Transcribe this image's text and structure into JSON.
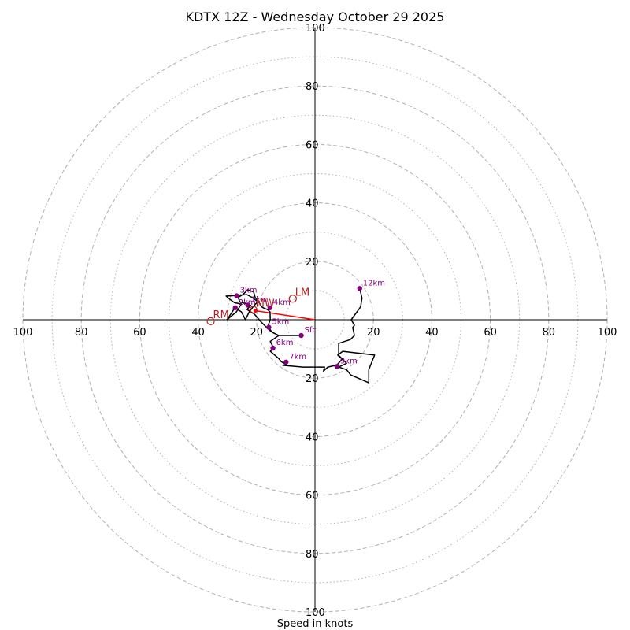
{
  "chart_data": {
    "type": "scatter",
    "title": "KDTX 12Z - Wednesday October 29 2025",
    "xlabel": "Speed in knots",
    "ylabel": "",
    "xlim": [
      -100,
      100
    ],
    "ylim": [
      -100,
      100
    ],
    "rings_major": [
      20,
      40,
      60,
      80,
      100
    ],
    "rings_minor": [
      10,
      30,
      50,
      70,
      90
    ],
    "x_ticks": [
      {
        "value": -100,
        "label": "100"
      },
      {
        "value": -80,
        "label": "80"
      },
      {
        "value": -60,
        "label": "60"
      },
      {
        "value": -40,
        "label": "40"
      },
      {
        "value": -20,
        "label": "20"
      },
      {
        "value": 20,
        "label": "20"
      },
      {
        "value": 40,
        "label": "40"
      },
      {
        "value": 60,
        "label": "60"
      },
      {
        "value": 80,
        "label": "80"
      },
      {
        "value": 100,
        "label": "100"
      }
    ],
    "y_ticks": [
      {
        "value": 100,
        "label": "100"
      },
      {
        "value": 80,
        "label": "80"
      },
      {
        "value": 60,
        "label": "60"
      },
      {
        "value": 40,
        "label": "40"
      },
      {
        "value": 20,
        "label": "20"
      },
      {
        "value": -20,
        "label": "20"
      },
      {
        "value": -40,
        "label": "40"
      },
      {
        "value": -60,
        "label": "60"
      },
      {
        "value": -80,
        "label": "80"
      },
      {
        "value": -100,
        "label": "100"
      }
    ],
    "trace": [
      [
        -4.7,
        -5.4
      ],
      [
        -8.5,
        -5.4
      ],
      [
        -12.4,
        -5.4
      ],
      [
        -15,
        -4.1
      ],
      [
        -16.5,
        -2.7
      ],
      [
        -18.5,
        -0.7
      ],
      [
        -20.7,
        1.9
      ],
      [
        -23.3,
        3.5
      ],
      [
        -22,
        4.9
      ],
      [
        -25.7,
        6.1
      ],
      [
        -26.3,
        7.6
      ],
      [
        -24.6,
        8.7
      ],
      [
        -23,
        10.3
      ],
      [
        -21,
        9.5
      ],
      [
        -20.4,
        7.4
      ],
      [
        -19.3,
        6.4
      ],
      [
        -20.8,
        4.9
      ],
      [
        -22.5,
        2.7
      ],
      [
        -23.8,
        0
      ],
      [
        -25.2,
        2.7
      ],
      [
        -27.4,
        4.1
      ],
      [
        -30.1,
        0
      ],
      [
        -26.9,
        2.7
      ],
      [
        -25.2,
        5.4
      ],
      [
        -27.5,
        5.8
      ],
      [
        -29.2,
        7
      ],
      [
        -30.4,
        8.1
      ],
      [
        -28.5,
        8.2
      ],
      [
        -26.4,
        8.4
      ],
      [
        -23.3,
        8.6
      ],
      [
        -21.7,
        7.7
      ],
      [
        -19.2,
        5.9
      ],
      [
        -18.2,
        4.4
      ],
      [
        -17.4,
        3.9
      ],
      [
        -16.3,
        3.5
      ],
      [
        -15.4,
        2.7
      ],
      [
        -15.3,
        0
      ],
      [
        -16,
        -1.9
      ],
      [
        -15.8,
        -2.7
      ],
      [
        -14.7,
        -4.3
      ],
      [
        -12.4,
        -5.4
      ],
      [
        -15.3,
        -7.4
      ],
      [
        -14.2,
        -9.6
      ],
      [
        -15.3,
        -10.8
      ],
      [
        -12.4,
        -13.3
      ],
      [
        -11.6,
        -14.3
      ],
      [
        -9.9,
        -15.3
      ],
      [
        -11,
        -15.6
      ],
      [
        -4.1,
        -16.2
      ],
      [
        3.3,
        -16.2
      ],
      [
        2.9,
        -17.6
      ],
      [
        4.4,
        -16.2
      ],
      [
        7.5,
        -15.5
      ],
      [
        9.3,
        -13.5
      ],
      [
        7.8,
        -12.1
      ],
      [
        9.5,
        -10.8
      ],
      [
        20.4,
        -12.1
      ],
      [
        18.4,
        -17.1
      ],
      [
        18.4,
        -21.6
      ],
      [
        12.2,
        -18.9
      ],
      [
        10.8,
        -17.1
      ],
      [
        8.1,
        -16.2
      ],
      [
        10.8,
        -14.9
      ],
      [
        8.1,
        -12.2
      ],
      [
        8.1,
        -8.1
      ],
      [
        12.1,
        -6.8
      ],
      [
        13.5,
        -5.4
      ],
      [
        12.9,
        -2.7
      ],
      [
        13.5,
        -1.9
      ],
      [
        12.4,
        0
      ],
      [
        15.6,
        4.4
      ],
      [
        16.1,
        7.4
      ],
      [
        15.3,
        10.8
      ]
    ],
    "height_markers": [
      {
        "label": "Sfc",
        "u": -4.7,
        "v": -5.4
      },
      {
        "label": "1km",
        "u": -23,
        "v": 5
      },
      {
        "label": "2km",
        "u": -27.3,
        "v": 4.1
      },
      {
        "label": "3km",
        "u": -26.8,
        "v": 8.2
      },
      {
        "label": "4km",
        "u": -15.4,
        "v": 4.1
      },
      {
        "label": "5km",
        "u": -15.8,
        "v": -2.6
      },
      {
        "label": "6km",
        "u": -14.4,
        "v": -9.7
      },
      {
        "label": "7km",
        "u": -9.9,
        "v": -14.5
      },
      {
        "label": "9km",
        "u": 7.5,
        "v": -16
      },
      {
        "label": "12km",
        "u": 15.3,
        "v": 10.7
      }
    ],
    "storm_motion": {
      "mean": {
        "label": "MW",
        "u": -21.1,
        "v": 3.4
      },
      "right": {
        "label": "RM",
        "u": -35.7,
        "v": -0.5
      },
      "left": {
        "label": "LM",
        "u": -7.6,
        "v": 7.2
      },
      "shear_vector_end": {
        "u": -20.4,
        "v": 3.1
      }
    },
    "colors": {
      "trace": "#000000",
      "markers": "#800080",
      "storm_motion": "#b22222",
      "shear_vector": "#ff0000",
      "rings": "#b0b0b0",
      "axes": "#000000"
    }
  }
}
